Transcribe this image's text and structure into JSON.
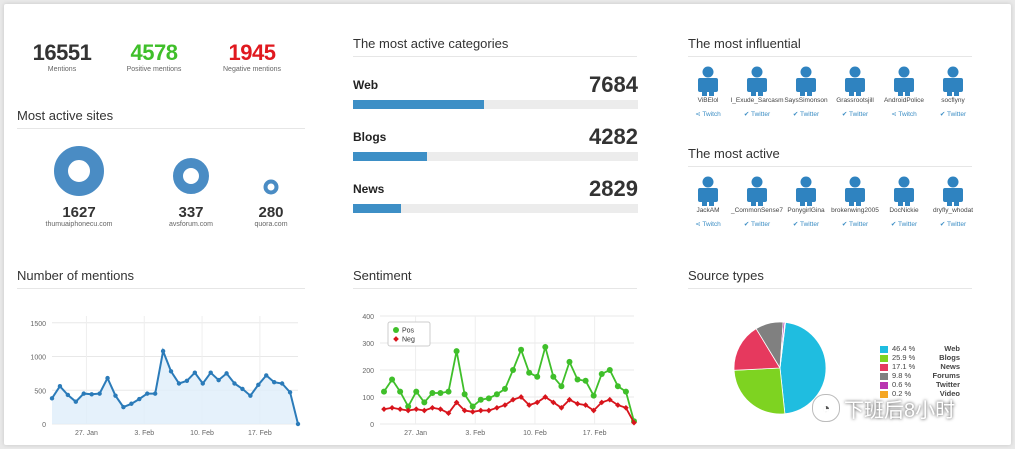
{
  "kpis": [
    {
      "value": "16551",
      "label": "Mentions",
      "color": "#333333"
    },
    {
      "value": "4578",
      "label": "Positive mentions",
      "color": "#3fbf2a"
    },
    {
      "value": "1945",
      "label": "Negative mentions",
      "color": "#e0191f"
    }
  ],
  "sites": {
    "title": "Most active sites",
    "items": [
      {
        "value": "1627",
        "label": "thumuaiphonecu.com"
      },
      {
        "value": "337",
        "label": "avsforum.com"
      },
      {
        "value": "280",
        "label": "quora.com"
      }
    ]
  },
  "categories": {
    "title": "The most active categories",
    "items": [
      {
        "name": "Web",
        "value": "7684",
        "fraction": 0.46
      },
      {
        "name": "Blogs",
        "value": "4282",
        "fraction": 0.26
      },
      {
        "name": "News",
        "value": "2829",
        "fraction": 0.17
      }
    ]
  },
  "influential": {
    "title": "The most influential",
    "people": [
      {
        "name": "ViBElol",
        "source": "Twitch",
        "icon": "share-icon"
      },
      {
        "name": "I_Exude_Sarcasm",
        "source": "Twitter",
        "icon": "twitter-icon"
      },
      {
        "name": "SaysSimonson",
        "source": "Twitter",
        "icon": "twitter-icon"
      },
      {
        "name": "Grassrootsjill",
        "source": "Twitter",
        "icon": "twitter-icon"
      },
      {
        "name": "AndroidPolice",
        "source": "Twitch",
        "icon": "share-icon"
      },
      {
        "name": "socflyny",
        "source": "Twitter",
        "icon": "twitter-icon"
      }
    ]
  },
  "active": {
    "title": "The most active",
    "people": [
      {
        "name": "JackAM",
        "source": "Twitch",
        "icon": "share-icon"
      },
      {
        "name": "_CommonSense7",
        "source": "Twitter",
        "icon": "twitter-icon"
      },
      {
        "name": "PonygirlGina",
        "source": "Twitter",
        "icon": "twitter-icon"
      },
      {
        "name": "brokenwing2005",
        "source": "Twitter",
        "icon": "twitter-icon"
      },
      {
        "name": "DocNickie",
        "source": "Twitter",
        "icon": "twitter-icon"
      },
      {
        "name": "dryfly_whodat",
        "source": "Twitter",
        "icon": "twitter-icon"
      }
    ]
  },
  "mentions_chart": {
    "title": "Number of mentions"
  },
  "sentiment_chart": {
    "title": "Sentiment"
  },
  "source_chart": {
    "title": "Source types"
  },
  "watermark": {
    "text": "下班后8小时"
  },
  "chart_data": [
    {
      "type": "area",
      "title": "Number of mentions",
      "x_ticks": [
        "27. Jan",
        "3. Feb",
        "10. Feb",
        "17. Feb"
      ],
      "y_ticks": [
        0,
        500,
        1000,
        1500
      ],
      "ylim": [
        0,
        1600
      ],
      "values": [
        380,
        560,
        430,
        330,
        450,
        440,
        450,
        680,
        420,
        250,
        300,
        370,
        450,
        450,
        1080,
        780,
        600,
        640,
        760,
        600,
        760,
        650,
        750,
        600,
        520,
        420,
        580,
        720,
        620,
        600,
        470,
        0
      ],
      "color": "#2b7bb9",
      "grid": true
    },
    {
      "type": "line",
      "title": "Sentiment",
      "x_ticks": [
        "27. Jan",
        "3. Feb",
        "10. Feb",
        "17. Feb"
      ],
      "y_ticks": [
        0,
        100,
        200,
        300,
        400
      ],
      "ylim": [
        0,
        400
      ],
      "legend": "top-left",
      "series": [
        {
          "name": "Pos",
          "color": "#3fbf2a",
          "values": [
            120,
            165,
            120,
            65,
            120,
            80,
            115,
            115,
            120,
            270,
            110,
            65,
            90,
            95,
            110,
            130,
            200,
            275,
            190,
            175,
            285,
            175,
            140,
            230,
            165,
            160,
            105,
            185,
            200,
            140,
            120,
            10
          ]
        },
        {
          "name": "Neg",
          "color": "#d8141c",
          "values": [
            55,
            60,
            55,
            50,
            55,
            50,
            60,
            55,
            40,
            80,
            50,
            45,
            50,
            50,
            60,
            70,
            90,
            100,
            70,
            80,
            100,
            80,
            60,
            90,
            75,
            70,
            50,
            80,
            90,
            70,
            60,
            5
          ]
        }
      ]
    },
    {
      "type": "pie",
      "title": "Source types",
      "slices": [
        {
          "label": "Web",
          "percent": 46.4,
          "color": "#1fbde0"
        },
        {
          "label": "Blogs",
          "percent": 25.9,
          "color": "#7ed321"
        },
        {
          "label": "News",
          "percent": 17.1,
          "color": "#e6395e"
        },
        {
          "label": "Forums",
          "percent": 9.8,
          "color": "#808080"
        },
        {
          "label": "Twitter",
          "percent": 0.6,
          "color": "#b935b0"
        },
        {
          "label": "Video",
          "percent": 0.2,
          "color": "#f5a623"
        }
      ],
      "legend": "right"
    }
  ]
}
